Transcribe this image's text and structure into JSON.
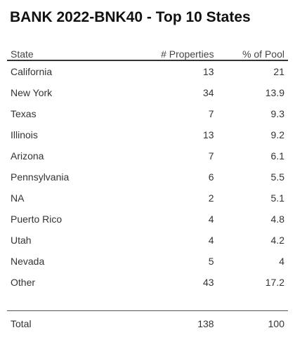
{
  "title": "BANK 2022-BNK40 - Top 10 States",
  "columns": {
    "state": "State",
    "properties": "# Properties",
    "pool": "% of Pool"
  },
  "rows": [
    {
      "state": "California",
      "properties": "13",
      "pool": "21"
    },
    {
      "state": "New York",
      "properties": "34",
      "pool": "13.9"
    },
    {
      "state": "Texas",
      "properties": "7",
      "pool": "9.3"
    },
    {
      "state": "Illinois",
      "properties": "13",
      "pool": "9.2"
    },
    {
      "state": "Arizona",
      "properties": "7",
      "pool": "6.1"
    },
    {
      "state": "Pennsylvania",
      "properties": "6",
      "pool": "5.5"
    },
    {
      "state": "NA",
      "properties": "2",
      "pool": "5.1"
    },
    {
      "state": "Puerto Rico",
      "properties": "4",
      "pool": "4.8"
    },
    {
      "state": "Utah",
      "properties": "4",
      "pool": "4.2"
    },
    {
      "state": "Nevada",
      "properties": "5",
      "pool": "4"
    },
    {
      "state": "Other",
      "properties": "43",
      "pool": "17.2"
    }
  ],
  "total": {
    "label": "Total",
    "properties": "138",
    "pool": "100"
  }
}
